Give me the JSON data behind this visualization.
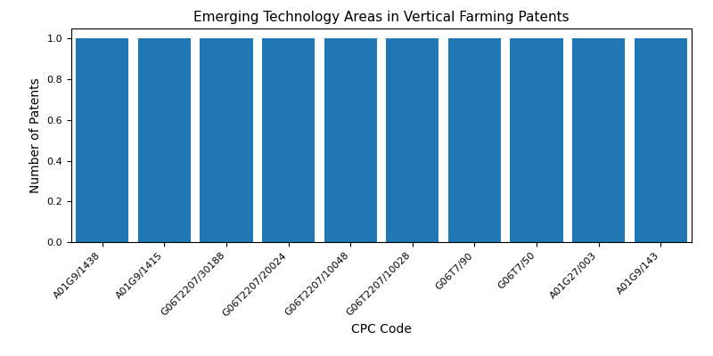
{
  "title": "Emerging Technology Areas in Vertical Farming Patents",
  "xlabel": "CPC Code",
  "ylabel": "Number of Patents",
  "categories": [
    "A01G9/1438",
    "A01G9/1415",
    "G06T2207/30188",
    "G06T2207/20024",
    "G06T2207/10048",
    "G06T2207/10028",
    "G06T7/90",
    "G06T7/50",
    "A01G27/003",
    "A01G9/143"
  ],
  "values": [
    1,
    1,
    1,
    1,
    1,
    1,
    1,
    1,
    1,
    1
  ],
  "bar_color": "#2077b4",
  "ylim": [
    0,
    1.05
  ],
  "yticks": [
    0.0,
    0.2,
    0.4,
    0.6,
    0.8,
    1.0
  ],
  "title_fontsize": 11,
  "axis_label_fontsize": 10,
  "tick_fontsize": 8,
  "bar_width": 0.85,
  "figsize": [
    8.0,
    4.0
  ],
  "dpi": 100
}
